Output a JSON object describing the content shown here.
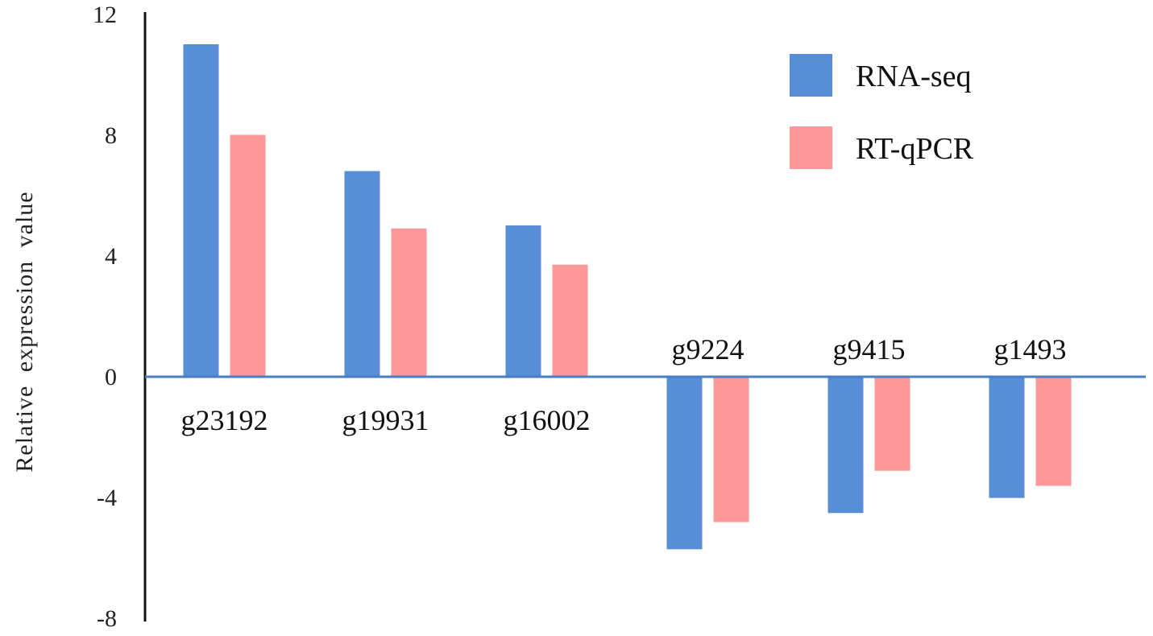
{
  "chart_data": {
    "type": "bar",
    "categories": [
      "g23192",
      "g19931",
      "g16002",
      "g9224",
      "g9415",
      "g1493"
    ],
    "series": [
      {
        "name": "RNA-seq",
        "values": [
          11.0,
          6.8,
          5.0,
          -5.7,
          -4.5,
          -4.0
        ],
        "color": "#578ed6"
      },
      {
        "name": "RT-qPCR",
        "values": [
          8.0,
          4.9,
          3.7,
          -4.8,
          -3.1,
          -3.6
        ],
        "color": "#fd9898"
      }
    ],
    "ylabel": "Relative  expression  value",
    "ylim": [
      -8,
      12
    ],
    "yticks": [
      12,
      8,
      4,
      0,
      -4,
      -8
    ],
    "category_label_position": [
      "below",
      "below",
      "below",
      "above",
      "above",
      "above"
    ],
    "legend_position": "top-right",
    "grid": false,
    "zero_line_color": "#4a7fc4"
  }
}
